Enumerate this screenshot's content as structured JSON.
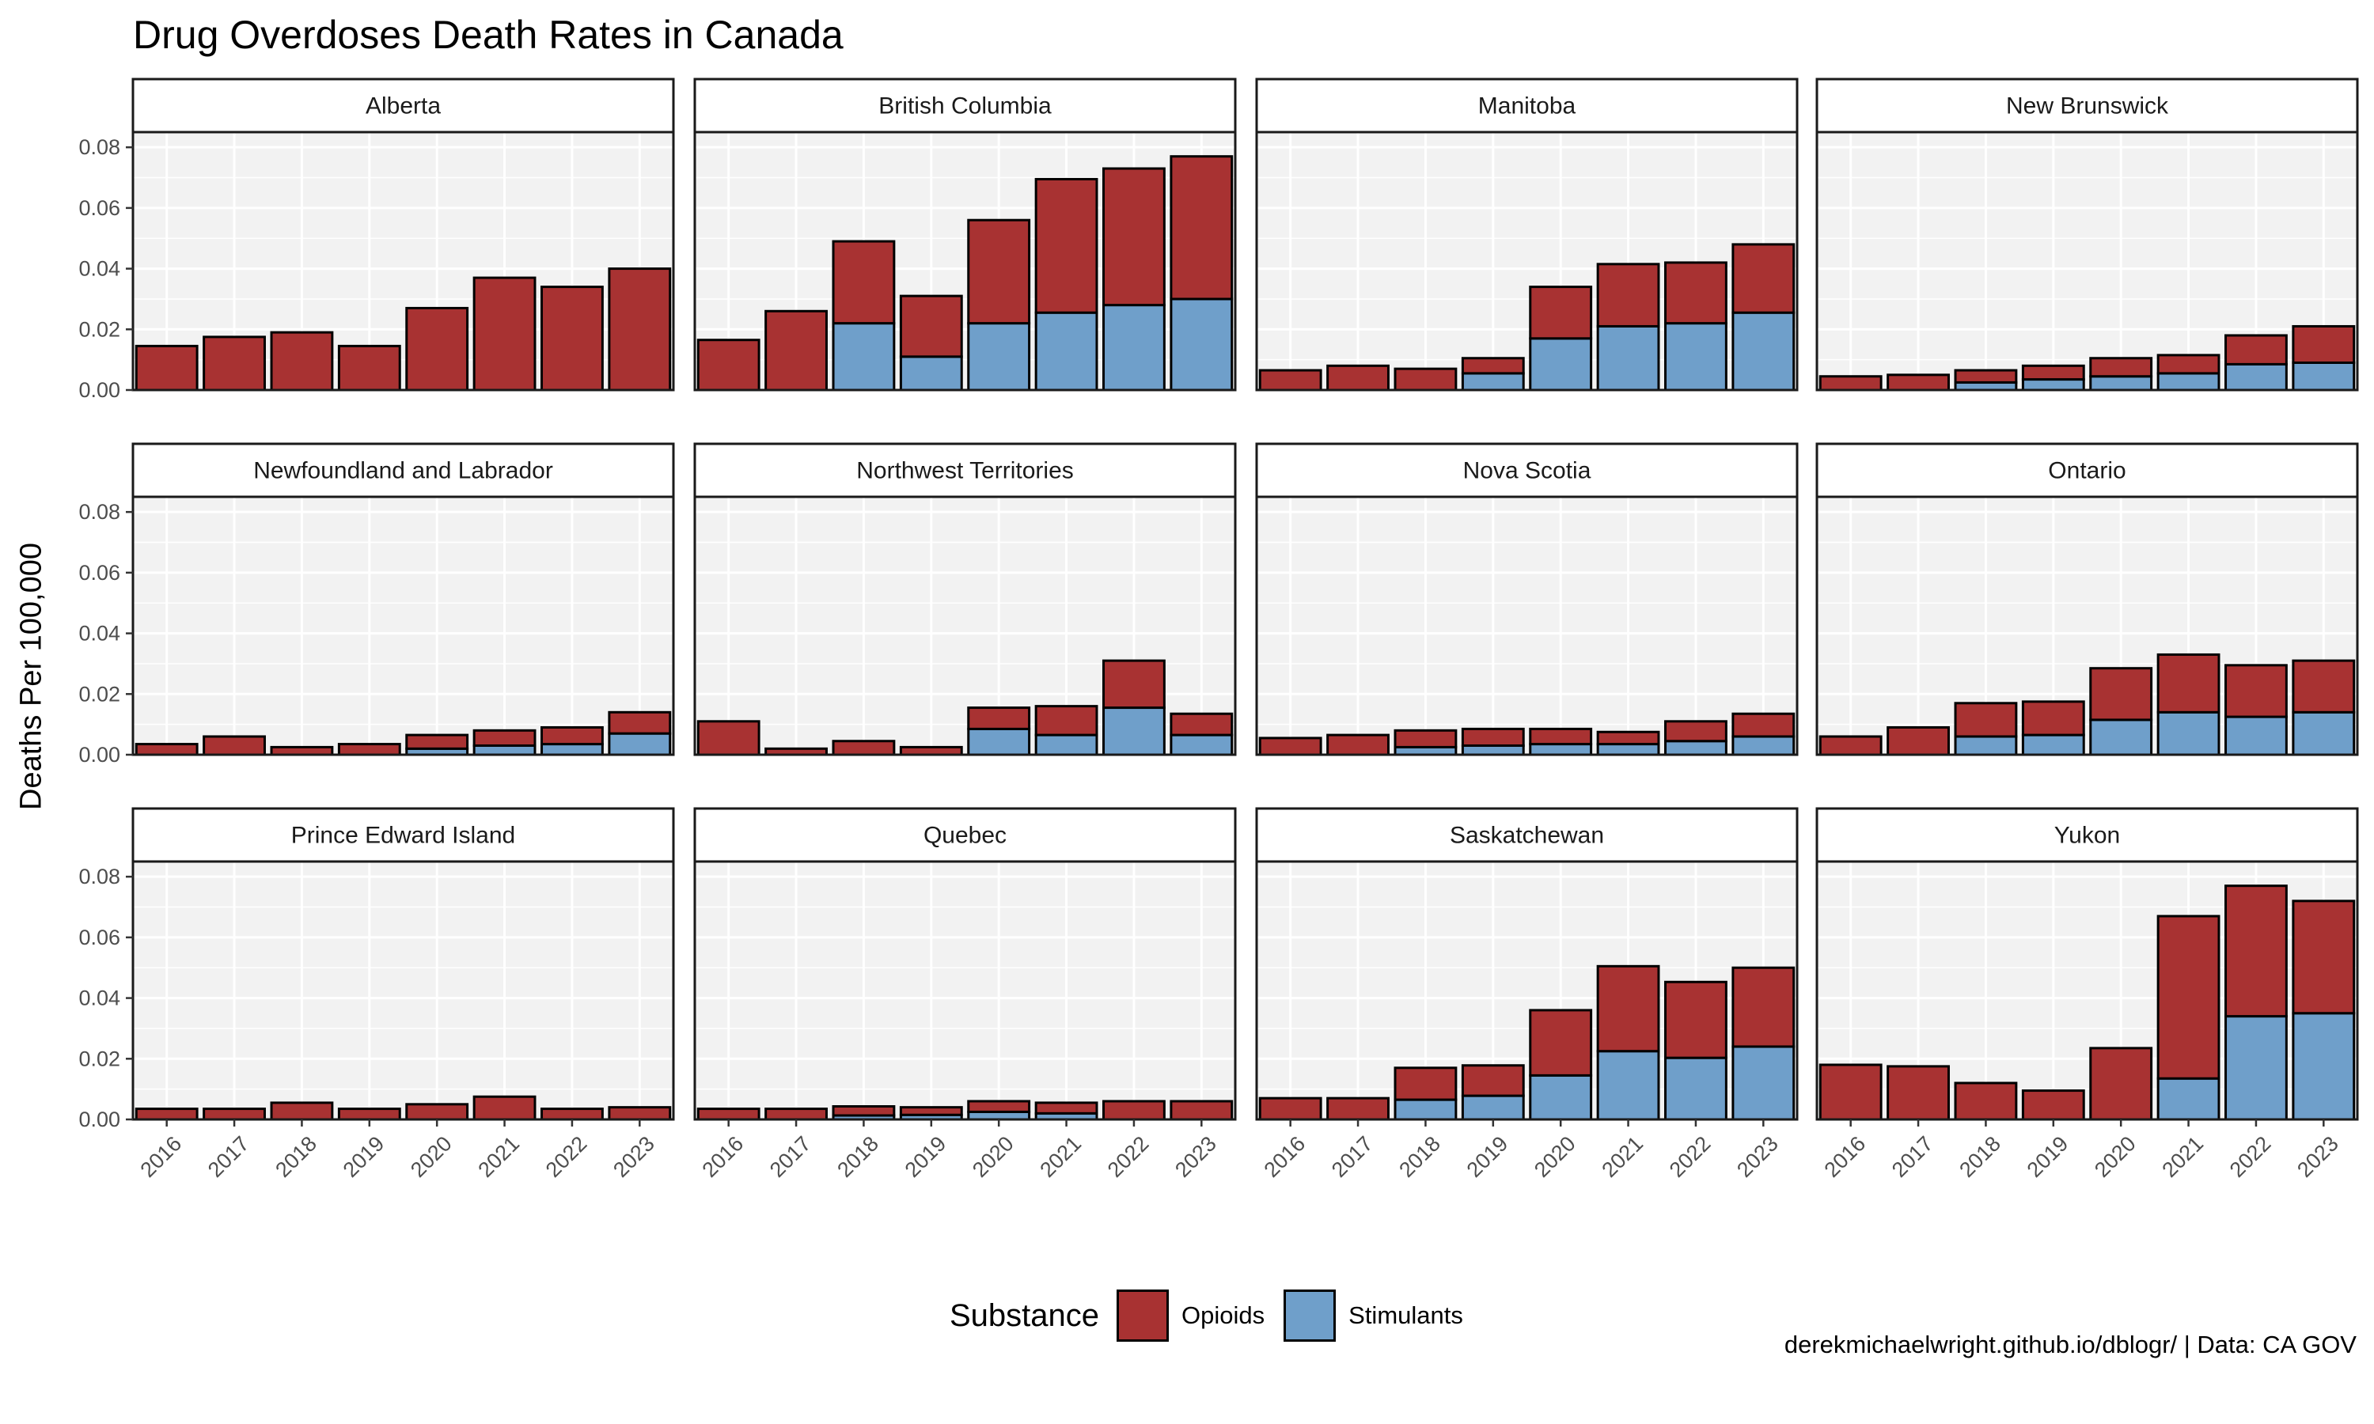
{
  "chart_data": {
    "type": "bar",
    "stacked": true,
    "title": "Drug Overdoses Death Rates in Canada",
    "ylabel": "Deaths Per 100,000",
    "xlabel": "",
    "ylim": [
      0,
      0.085
    ],
    "y_ticks": [
      "0.00",
      "0.02",
      "0.04",
      "0.06",
      "0.08"
    ],
    "y_tick_values": [
      0,
      0.02,
      0.04,
      0.06,
      0.08
    ],
    "categories": [
      "2016",
      "2017",
      "2018",
      "2019",
      "2020",
      "2021",
      "2022",
      "2023"
    ],
    "legend": {
      "title": "Substance",
      "position": "bottom",
      "items": [
        {
          "label": "Opioids",
          "color": "#a83232"
        },
        {
          "label": "Stimulants",
          "color": "#6f9fca"
        }
      ]
    },
    "caption": "derekmichaelwright.github.io/dblogr/ | Data: CA GOV",
    "grid": true,
    "facets": [
      {
        "name": "Alberta",
        "opioids": [
          0.0145,
          0.0175,
          0.019,
          0.0145,
          0.027,
          0.037,
          0.034,
          0.04
        ],
        "stimulants": [
          0,
          0,
          0,
          0,
          0,
          0,
          0,
          0
        ]
      },
      {
        "name": "British Columbia",
        "opioids": [
          0.0165,
          0.026,
          0.027,
          0.02,
          0.034,
          0.044,
          0.045,
          0.047
        ],
        "stimulants": [
          0,
          0,
          0.022,
          0.011,
          0.022,
          0.0255,
          0.028,
          0.03
        ]
      },
      {
        "name": "Manitoba",
        "opioids": [
          0.0065,
          0.008,
          0.007,
          0.005,
          0.017,
          0.0205,
          0.02,
          0.0225
        ],
        "stimulants": [
          0,
          0,
          0,
          0.0055,
          0.017,
          0.021,
          0.022,
          0.0255
        ]
      },
      {
        "name": "New Brunswick",
        "opioids": [
          0.0045,
          0.005,
          0.004,
          0.0045,
          0.006,
          0.006,
          0.0095,
          0.012
        ],
        "stimulants": [
          0,
          0,
          0.0025,
          0.0035,
          0.0045,
          0.0055,
          0.0085,
          0.009
        ]
      },
      {
        "name": "Newfoundland and Labrador",
        "opioids": [
          0.0035,
          0.006,
          0.0025,
          0.0035,
          0.0045,
          0.005,
          0.0055,
          0.007
        ],
        "stimulants": [
          0,
          0,
          0,
          0,
          0.002,
          0.003,
          0.0035,
          0.007
        ]
      },
      {
        "name": "Northwest Territories",
        "opioids": [
          0.011,
          0.002,
          0.0045,
          0.0025,
          0.007,
          0.0095,
          0.0155,
          0.007
        ],
        "stimulants": [
          0,
          0,
          0,
          0,
          0.0085,
          0.0065,
          0.0155,
          0.0065
        ]
      },
      {
        "name": "Nova Scotia",
        "opioids": [
          0.0055,
          0.0065,
          0.0055,
          0.0055,
          0.005,
          0.004,
          0.0065,
          0.0075
        ],
        "stimulants": [
          0,
          0,
          0.0025,
          0.003,
          0.0035,
          0.0035,
          0.0045,
          0.006
        ]
      },
      {
        "name": "Ontario",
        "opioids": [
          0.006,
          0.009,
          0.011,
          0.011,
          0.017,
          0.019,
          0.017,
          0.017
        ],
        "stimulants": [
          0,
          0,
          0.006,
          0.0065,
          0.0115,
          0.014,
          0.0125,
          0.014
        ]
      },
      {
        "name": "Prince Edward Island",
        "opioids": [
          0.0035,
          0.0035,
          0.0055,
          0.0035,
          0.005,
          0.0075,
          0.0035,
          0.004
        ],
        "stimulants": [
          0,
          0,
          0,
          0,
          0,
          0,
          0,
          0
        ]
      },
      {
        "name": "Quebec",
        "opioids": [
          0.0035,
          0.0035,
          0.003,
          0.0025,
          0.0035,
          0.0035,
          0.006,
          0.006
        ],
        "stimulants": [
          0,
          0,
          0.0013,
          0.0015,
          0.0025,
          0.002,
          0,
          0
        ]
      },
      {
        "name": "Saskatchewan",
        "opioids": [
          0.007,
          0.007,
          0.0105,
          0.01,
          0.0215,
          0.028,
          0.025,
          0.026
        ],
        "stimulants": [
          0,
          0,
          0.0065,
          0.0078,
          0.0145,
          0.0225,
          0.0203,
          0.024
        ]
      },
      {
        "name": "Yukon",
        "opioids": [
          0.018,
          0.0175,
          0.012,
          0.0095,
          0.0235,
          0.0535,
          0.043,
          0.037
        ],
        "stimulants": [
          0,
          0,
          0,
          0,
          0,
          0.0135,
          0.034,
          0.035
        ]
      }
    ]
  }
}
